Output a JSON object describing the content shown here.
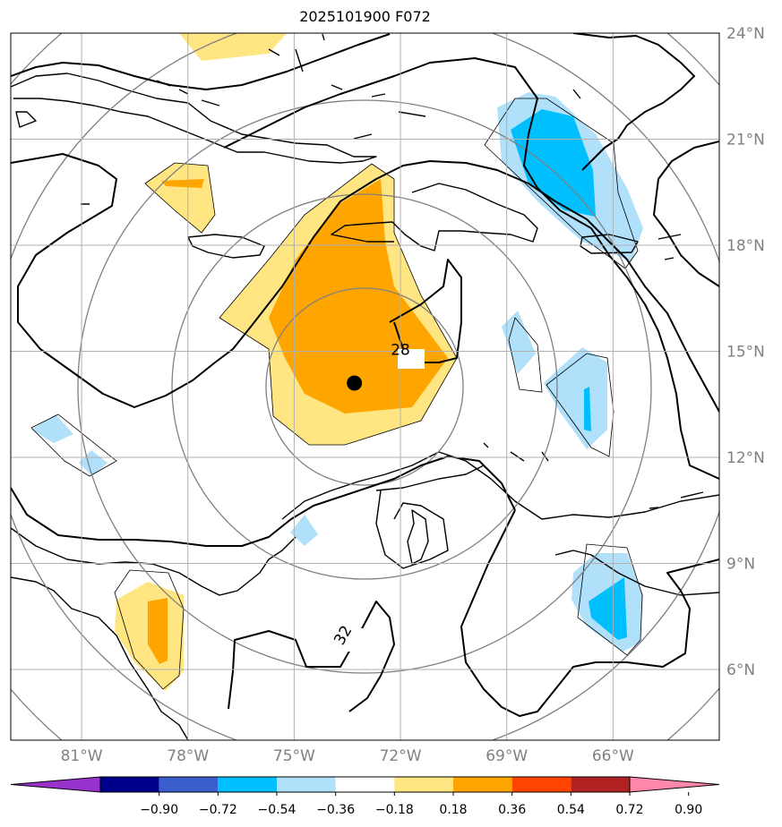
{
  "title": "2025101900 F072",
  "map": {
    "lon_range": [
      -83,
      -63
    ],
    "lat_range": [
      4,
      24
    ],
    "lat_ticks": [
      {
        "value": 24,
        "label": "24°N"
      },
      {
        "value": 21,
        "label": "21°N"
      },
      {
        "value": 18,
        "label": "18°N"
      },
      {
        "value": 15,
        "label": "15°N"
      },
      {
        "value": 12,
        "label": "12°N"
      },
      {
        "value": 9,
        "label": "9°N"
      },
      {
        "value": 6,
        "label": "6°N"
      }
    ],
    "lon_ticks": [
      {
        "value": -81,
        "label": "81°W"
      },
      {
        "value": -78,
        "label": "78°W"
      },
      {
        "value": -75,
        "label": "75°W"
      },
      {
        "value": -72,
        "label": "72°W"
      },
      {
        "value": -69,
        "label": "69°W"
      },
      {
        "value": -66,
        "label": "66°W"
      }
    ],
    "storm_center": {
      "lon": -73.3,
      "lat": 14.1
    },
    "contour_labels": [
      {
        "text": "28",
        "lon": -72.0,
        "lat": 14.9
      },
      {
        "text": "32",
        "lon": -73.5,
        "lat": 6.9
      }
    ],
    "grid": true
  },
  "colorbar": {
    "ticks": [
      "−0.90",
      "−0.72",
      "−0.54",
      "−0.36",
      "−0.18",
      "0.18",
      "0.36",
      "0.54",
      "0.72",
      "0.90"
    ],
    "colors": [
      "#9932cc",
      "#00008b",
      "#3a5fcd",
      "#00bfff",
      "#b0e0fa",
      "#ffffff",
      "#ffe682",
      "#ffa500",
      "#ff4500",
      "#b22222",
      "#ff88aa"
    ]
  }
}
